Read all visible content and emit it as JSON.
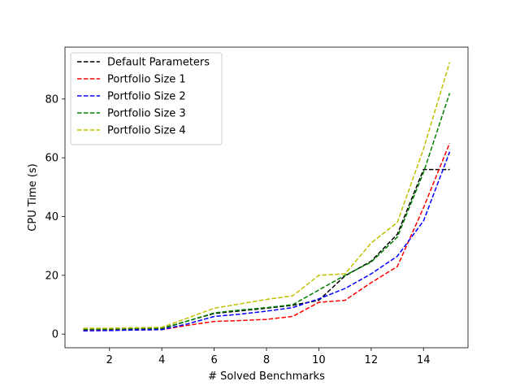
{
  "chart_data": {
    "type": "line",
    "title": "",
    "xlabel": "# Solved Benchmarks",
    "ylabel": "CPU Time (s)",
    "xlim": [
      0.3,
      15.7
    ],
    "ylim": [
      -4.65,
      97.65
    ],
    "xticks": [
      2,
      4,
      6,
      8,
      10,
      12,
      14
    ],
    "yticks": [
      0,
      20,
      40,
      60,
      80
    ],
    "grid": false,
    "legend_position": "upper-left",
    "series": [
      {
        "name": "Default Parameters",
        "color": "#000000",
        "x": [
          1,
          2,
          3,
          4,
          5,
          6,
          7,
          8,
          9,
          10,
          11,
          12,
          13,
          14,
          15
        ],
        "y": [
          1.5,
          1.6,
          1.7,
          1.8,
          4.5,
          7.0,
          7.9,
          8.8,
          9.8,
          11.5,
          19.8,
          24.8,
          34.0,
          56.0,
          56.0
        ]
      },
      {
        "name": "Portfolio Size 1",
        "color": "#ff0000",
        "x": [
          1,
          2,
          3,
          4,
          5,
          6,
          7,
          8,
          9,
          10,
          11,
          12,
          13,
          14,
          15
        ],
        "y": [
          1.2,
          1.3,
          1.4,
          1.5,
          3.0,
          4.3,
          4.6,
          5.0,
          6.0,
          10.8,
          11.5,
          17.5,
          23.0,
          43.0,
          65.0
        ]
      },
      {
        "name": "Portfolio Size 2",
        "color": "#0000ff",
        "x": [
          1,
          2,
          3,
          4,
          5,
          6,
          7,
          8,
          9,
          10,
          11,
          12,
          13,
          14,
          15
        ],
        "y": [
          1.1,
          1.2,
          1.4,
          1.5,
          3.5,
          6.0,
          6.8,
          7.8,
          9.0,
          12.0,
          15.5,
          20.5,
          26.5,
          38.5,
          62.0
        ]
      },
      {
        "name": "Portfolio Size 3",
        "color": "#008000",
        "x": [
          1,
          2,
          3,
          4,
          5,
          6,
          7,
          8,
          9,
          10,
          11,
          12,
          13,
          14,
          15
        ],
        "y": [
          1.6,
          1.7,
          1.9,
          2.0,
          4.5,
          7.2,
          8.2,
          9.0,
          10.0,
          15.0,
          20.0,
          24.5,
          33.0,
          55.0,
          82.0
        ]
      },
      {
        "name": "Portfolio Size 4",
        "color": "#c0c000",
        "x": [
          1,
          2,
          3,
          4,
          5,
          6,
          7,
          8,
          9,
          10,
          11,
          12,
          13,
          14,
          15
        ],
        "y": [
          2.0,
          2.0,
          2.2,
          2.3,
          5.5,
          8.8,
          10.3,
          11.8,
          13.0,
          20.0,
          20.5,
          31.0,
          38.0,
          63.0,
          92.5
        ]
      }
    ]
  }
}
